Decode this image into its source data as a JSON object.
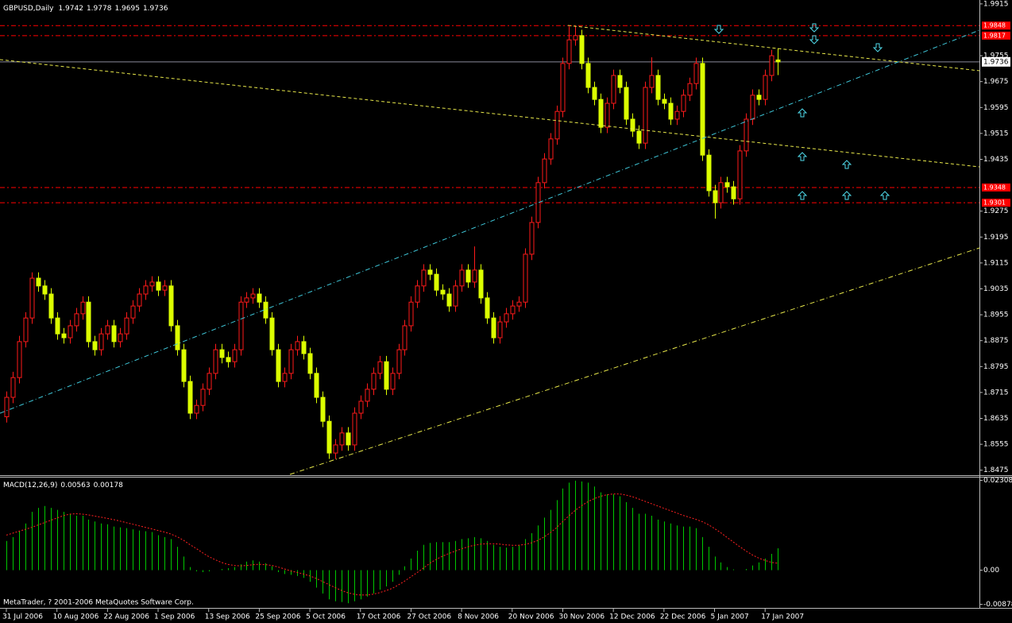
{
  "chart_data": [
    {
      "type": "candlestick",
      "title": "GBPUSD,Daily",
      "last_ohlc": [
        1.9742,
        1.9778,
        1.9695,
        1.9736
      ],
      "categories": [
        "31 Jul 2006",
        null,
        null,
        null,
        null,
        null,
        null,
        null,
        "10 Aug 2006",
        null,
        null,
        null,
        null,
        null,
        null,
        null,
        "22 Aug 2006",
        null,
        null,
        null,
        null,
        null,
        null,
        null,
        "1 Sep 2006",
        null,
        null,
        null,
        null,
        null,
        null,
        null,
        "13 Sep 2006",
        null,
        null,
        null,
        null,
        null,
        null,
        null,
        "25 Sep 2006",
        null,
        null,
        null,
        null,
        null,
        null,
        null,
        "5 Oct 2006",
        null,
        null,
        null,
        null,
        null,
        null,
        null,
        "17 Oct 2006",
        null,
        null,
        null,
        null,
        null,
        null,
        null,
        "27 Oct 2006",
        null,
        null,
        null,
        null,
        null,
        null,
        null,
        "8 Nov 2006",
        null,
        null,
        null,
        null,
        null,
        null,
        null,
        "20 Nov 2006",
        null,
        null,
        null,
        null,
        null,
        null,
        null,
        "30 Nov 2006",
        null,
        null,
        null,
        null,
        null,
        null,
        null,
        "12 Dec 2006",
        null,
        null,
        null,
        null,
        null,
        null,
        null,
        "22 Dec 2006",
        null,
        null,
        null,
        null,
        null,
        null,
        null,
        "5 Jan 2007",
        null,
        null,
        null,
        null,
        null,
        null,
        null,
        "17 Jan 2007",
        null,
        null
      ],
      "open": [
        1.864,
        1.87,
        1.8761,
        1.8872,
        1.8945,
        1.9068,
        1.9044,
        1.9019,
        1.8945,
        1.8896,
        1.8884,
        1.8921,
        1.8958,
        1.8994,
        1.8872,
        1.8847,
        1.8896,
        1.8921,
        1.8872,
        1.8896,
        1.8945,
        1.8982,
        1.9019,
        1.9044,
        1.9056,
        1.9031,
        1.9044,
        1.8921,
        1.8847,
        1.8749,
        1.8651,
        1.8675,
        1.8725,
        1.8774,
        1.8847,
        1.8823,
        1.881,
        1.8847,
        1.8994,
        1.9007,
        1.9019,
        1.8994,
        1.8945,
        1.8847,
        1.8749,
        1.8774,
        1.8847,
        1.8872,
        1.8835,
        1.8774,
        1.87,
        1.8626,
        1.8528,
        1.8553,
        1.859,
        1.8553,
        1.8651,
        1.8688,
        1.8725,
        1.8774,
        1.881,
        1.8725,
        1.8774,
        1.8847,
        1.8921,
        1.8994,
        1.9044,
        1.9093,
        1.908,
        1.9031,
        1.9019,
        1.8982,
        1.9044,
        1.9093,
        1.9056,
        1.9093,
        1.9007,
        1.8945,
        1.8884,
        1.8933,
        1.8958,
        1.8982,
        1.8994,
        1.9142,
        1.924,
        1.9363,
        1.9436,
        1.9498,
        1.9583,
        1.9731,
        1.9804,
        1.9817,
        1.9731,
        1.9657,
        1.962,
        1.9534,
        1.9608,
        1.9694,
        1.9657,
        1.9559,
        1.9522,
        1.9485,
        1.9657,
        1.9694,
        1.962,
        1.9608,
        1.9559,
        1.9583,
        1.9633,
        1.9669,
        1.9731,
        1.9448,
        1.9338,
        1.9301,
        1.9363,
        1.935,
        1.9313,
        1.9461,
        1.9559,
        1.9633,
        1.962,
        1.9694,
        1.9742
      ],
      "high": [
        1.8718,
        1.8779,
        1.889,
        1.8963,
        1.9086,
        1.9086,
        1.9062,
        1.9037,
        1.8963,
        1.8914,
        1.8939,
        1.8976,
        1.9012,
        1.9012,
        1.889,
        1.8914,
        1.8939,
        1.8939,
        1.8914,
        1.8963,
        1.9,
        1.9037,
        1.9062,
        1.9074,
        1.9074,
        1.9062,
        1.9062,
        1.8939,
        1.8865,
        1.8767,
        1.8693,
        1.8743,
        1.8792,
        1.8865,
        1.8865,
        1.8841,
        1.8865,
        1.9012,
        1.9025,
        1.9037,
        1.9037,
        1.9012,
        1.8963,
        1.8865,
        1.8792,
        1.8865,
        1.889,
        1.889,
        1.8853,
        1.8792,
        1.8718,
        1.8644,
        1.8571,
        1.8608,
        1.8608,
        1.8669,
        1.8706,
        1.8743,
        1.8792,
        1.8828,
        1.8828,
        1.8792,
        1.8865,
        1.8939,
        1.9012,
        1.9062,
        1.9111,
        1.9111,
        1.9098,
        1.9049,
        1.9037,
        1.9062,
        1.9111,
        1.9111,
        1.9166,
        1.9111,
        1.9025,
        1.8963,
        1.8951,
        1.8976,
        1.9,
        1.9012,
        1.916,
        1.9258,
        1.9381,
        1.9454,
        1.9516,
        1.9601,
        1.9749,
        1.9845,
        1.9845,
        1.9835,
        1.9749,
        1.9675,
        1.9638,
        1.9626,
        1.9712,
        1.9712,
        1.9675,
        1.9577,
        1.954,
        1.9675,
        1.975,
        1.9712,
        1.9638,
        1.9626,
        1.9601,
        1.9651,
        1.9687,
        1.9749,
        1.9749,
        1.9466,
        1.9356,
        1.9381,
        1.9381,
        1.9368,
        1.9479,
        1.9577,
        1.9651,
        1.9651,
        1.9712,
        1.9773,
        1.9778
      ],
      "low": [
        1.8622,
        1.8682,
        1.8743,
        1.8854,
        1.8927,
        1.9026,
        1.9001,
        1.8927,
        1.8878,
        1.8866,
        1.8866,
        1.8903,
        1.894,
        1.8854,
        1.8829,
        1.8829,
        1.8878,
        1.8854,
        1.8854,
        1.8878,
        1.8927,
        1.8964,
        1.9001,
        1.9026,
        1.9013,
        1.9013,
        1.8903,
        1.8829,
        1.8731,
        1.8633,
        1.8633,
        1.8657,
        1.8707,
        1.8756,
        1.8805,
        1.8792,
        1.8792,
        1.8829,
        1.8976,
        1.8989,
        1.8976,
        1.8927,
        1.8829,
        1.8731,
        1.8731,
        1.8756,
        1.8829,
        1.8817,
        1.8756,
        1.8682,
        1.8608,
        1.851,
        1.851,
        1.8535,
        1.8535,
        1.8535,
        1.8633,
        1.867,
        1.8707,
        1.8756,
        1.8707,
        1.8707,
        1.8756,
        1.8829,
        1.8903,
        1.8976,
        1.9026,
        1.9062,
        1.9013,
        1.9001,
        1.8964,
        1.8964,
        1.9026,
        1.9038,
        1.9038,
        1.8989,
        1.8927,
        1.8866,
        1.8866,
        1.8915,
        1.894,
        1.8964,
        1.8976,
        1.9124,
        1.9222,
        1.9345,
        1.9418,
        1.948,
        1.9565,
        1.9713,
        1.9786,
        1.9713,
        1.9639,
        1.9602,
        1.9516,
        1.9516,
        1.959,
        1.9639,
        1.9541,
        1.9504,
        1.9467,
        1.9467,
        1.9639,
        1.9602,
        1.959,
        1.9541,
        1.9541,
        1.9565,
        1.9615,
        1.9651,
        1.943,
        1.932,
        1.9252,
        1.9283,
        1.9332,
        1.9295,
        1.9295,
        1.9443,
        1.9541,
        1.9602,
        1.9602,
        1.9676,
        1.9695
      ],
      "close": [
        1.87,
        1.8761,
        1.8872,
        1.8945,
        1.9068,
        1.9044,
        1.9019,
        1.8945,
        1.8896,
        1.8884,
        1.8921,
        1.8958,
        1.8994,
        1.8872,
        1.8847,
        1.8896,
        1.8921,
        1.8872,
        1.8896,
        1.8945,
        1.8982,
        1.9019,
        1.9044,
        1.9056,
        1.9031,
        1.9044,
        1.8921,
        1.8847,
        1.8749,
        1.8651,
        1.8675,
        1.8725,
        1.8774,
        1.8847,
        1.8823,
        1.881,
        1.8847,
        1.8994,
        1.9007,
        1.9019,
        1.8994,
        1.8945,
        1.8847,
        1.8749,
        1.8774,
        1.8847,
        1.8872,
        1.8835,
        1.8774,
        1.87,
        1.8626,
        1.8528,
        1.8553,
        1.859,
        1.8553,
        1.8651,
        1.8688,
        1.8725,
        1.8774,
        1.881,
        1.8725,
        1.8774,
        1.8847,
        1.8921,
        1.8994,
        1.9044,
        1.9093,
        1.908,
        1.9031,
        1.9019,
        1.8982,
        1.9044,
        1.9093,
        1.9056,
        1.9093,
        1.9007,
        1.8945,
        1.8884,
        1.8933,
        1.8958,
        1.8982,
        1.8994,
        1.9142,
        1.924,
        1.9363,
        1.9436,
        1.9498,
        1.9583,
        1.9731,
        1.9804,
        1.9817,
        1.9731,
        1.9657,
        1.962,
        1.9534,
        1.9608,
        1.9694,
        1.9657,
        1.9559,
        1.9522,
        1.9485,
        1.9657,
        1.9694,
        1.962,
        1.9608,
        1.9559,
        1.9583,
        1.9633,
        1.9669,
        1.9731,
        1.9448,
        1.9338,
        1.9301,
        1.9363,
        1.935,
        1.9313,
        1.9461,
        1.9559,
        1.9633,
        1.962,
        1.9694,
        1.9755,
        1.9736
      ],
      "up_color": "#ff1a1a",
      "down_color": "#dcff00",
      "current_price": 1.9736,
      "levels": [
        1.9848,
        1.9817,
        1.9348,
        1.9301
      ],
      "level_color": "#ff0000",
      "ylim": [
        1.8462,
        1.9927
      ],
      "yticks": [
        1.9915,
        1.9755,
        1.9675,
        1.9595,
        1.9515,
        1.9435,
        1.9275,
        1.9195,
        1.9115,
        1.9035,
        1.8955,
        1.8875,
        1.8795,
        1.8715,
        1.8635,
        1.8555,
        1.8475
      ],
      "grid": false
    },
    {
      "type": "macd",
      "title": "MACD(12,26,9)",
      "readout": [
        0.00563,
        0.00178
      ],
      "values": [
        0.0075,
        0.0085,
        0.01,
        0.012,
        0.015,
        0.016,
        0.0165,
        0.016,
        0.0155,
        0.015,
        0.0145,
        0.014,
        0.014,
        0.013,
        0.0125,
        0.012,
        0.0118,
        0.0112,
        0.011,
        0.0108,
        0.0105,
        0.0102,
        0.01,
        0.0098,
        0.009,
        0.0085,
        0.008,
        0.006,
        0.0035,
        0.0008,
        -0.0003,
        -0.0005,
        -0.0003,
        0.0,
        0.0003,
        0.0005,
        0.0008,
        0.0015,
        0.0022,
        0.0025,
        0.0022,
        0.0018,
        0.001,
        -0.0005,
        -0.001,
        -0.0012,
        -0.0015,
        -0.002,
        -0.003,
        -0.0045,
        -0.006,
        -0.0075,
        -0.008,
        -0.0082,
        -0.0085,
        -0.008,
        -0.0075,
        -0.0068,
        -0.006,
        -0.005,
        -0.0042,
        -0.003,
        -0.0012,
        0.001,
        0.003,
        0.005,
        0.0065,
        0.007,
        0.0072,
        0.0072,
        0.0072,
        0.0075,
        0.008,
        0.0082,
        0.0085,
        0.0082,
        0.0075,
        0.0065,
        0.006,
        0.0058,
        0.006,
        0.0065,
        0.008,
        0.0095,
        0.0115,
        0.0135,
        0.0155,
        0.018,
        0.021,
        0.0225,
        0.023,
        0.0228,
        0.0225,
        0.0215,
        0.02,
        0.0195,
        0.0195,
        0.019,
        0.0175,
        0.016,
        0.0145,
        0.0145,
        0.014,
        0.013,
        0.0125,
        0.012,
        0.0115,
        0.0112,
        0.0112,
        0.0108,
        0.0085,
        0.006,
        0.0035,
        0.002,
        0.0008,
        0.0002,
        0.0,
        0.0003,
        0.0012,
        0.002,
        0.003,
        0.0042,
        0.00563
      ],
      "signal": [
        0.009,
        0.0095,
        0.01,
        0.0105,
        0.011,
        0.0116,
        0.0122,
        0.0128,
        0.0134,
        0.014,
        0.0144,
        0.0145,
        0.0144,
        0.0142,
        0.0139,
        0.0136,
        0.0133,
        0.013,
        0.0126,
        0.0122,
        0.0118,
        0.0114,
        0.011,
        0.0106,
        0.0102,
        0.0098,
        0.0093,
        0.0086,
        0.0077,
        0.0066,
        0.0056,
        0.0045,
        0.0035,
        0.0027,
        0.002,
        0.0015,
        0.0012,
        0.0011,
        0.0012,
        0.0014,
        0.0015,
        0.0014,
        0.0012,
        0.0008,
        0.0003,
        -0.0002,
        -0.0006,
        -0.001,
        -0.0015,
        -0.0021,
        -0.0029,
        -0.0037,
        -0.0045,
        -0.0052,
        -0.0058,
        -0.0062,
        -0.0064,
        -0.0064,
        -0.0062,
        -0.0058,
        -0.0053,
        -0.0047,
        -0.0038,
        -0.0028,
        -0.0017,
        -0.0006,
        0.0006,
        0.0018,
        0.0028,
        0.0036,
        0.0043,
        0.0049,
        0.0055,
        0.006,
        0.0064,
        0.0067,
        0.0068,
        0.0068,
        0.0067,
        0.0065,
        0.0064,
        0.0064,
        0.0066,
        0.007,
        0.0076,
        0.0085,
        0.0096,
        0.0109,
        0.0125,
        0.014,
        0.0154,
        0.0166,
        0.0176,
        0.0184,
        0.019,
        0.0194,
        0.0196,
        0.0196,
        0.0193,
        0.0189,
        0.0183,
        0.0177,
        0.0171,
        0.0165,
        0.0159,
        0.0153,
        0.0147,
        0.0141,
        0.0136,
        0.0131,
        0.0125,
        0.0117,
        0.0107,
        0.0096,
        0.0084,
        0.0072,
        0.006,
        0.0049,
        0.0039,
        0.0031,
        0.0025,
        0.002,
        0.00178
      ],
      "color": "#00c800",
      "signal_color": "#ff2020",
      "ylim": [
        -0.0095,
        0.0238
      ],
      "yticks": [
        0.02308,
        {
          "value": 0,
          "label": "0.00"
        },
        -0.00878
      ]
    },
    {
      "type": "footer",
      "text": "MetaTrader, ? 2001-2006 MetaQuotes Software Corp."
    }
  ]
}
